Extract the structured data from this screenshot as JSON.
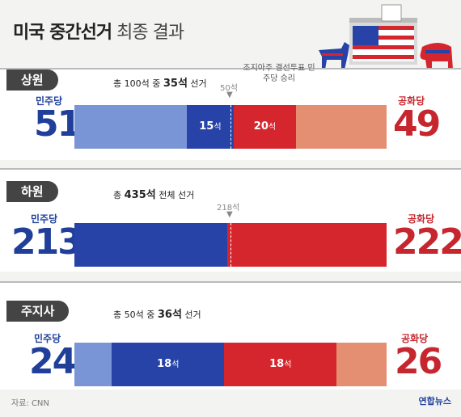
{
  "title_bold": "미국 중간선거",
  "title_light": "최종 결과",
  "labels": {
    "dem": "민주당",
    "rep": "공화당",
    "seat_unit": "석"
  },
  "footer": "자료: CNN",
  "logo": "연합뉴스",
  "colors": {
    "dem_dark": "#2743a8",
    "dem_light": "#7a95d6",
    "rep_dark": "#d6262d",
    "rep_light": "#e58f72"
  },
  "chart_data": [
    {
      "type": "bar",
      "title": "상원",
      "subtitle_pre": "총 100석 중 ",
      "subtitle_bold": "35석",
      "subtitle_post": " 선거",
      "total": 100,
      "dem": 51,
      "rep": 49,
      "dem_elected": 15,
      "rep_elected": 20,
      "majority_label": "50석",
      "note": "조지아주 결선투표 민주당 승리"
    },
    {
      "type": "bar",
      "title": "하원",
      "subtitle_pre": "총 ",
      "subtitle_bold": "435석",
      "subtitle_post": " 전체 선거",
      "total": 435,
      "dem": 213,
      "rep": 222,
      "majority_label": "218석"
    },
    {
      "type": "bar",
      "title": "주지사",
      "subtitle_pre": "총 50석 중 ",
      "subtitle_bold": "36석",
      "subtitle_post": " 선거",
      "total": 50,
      "dem": 24,
      "rep": 26,
      "dem_elected": 18,
      "rep_elected": 18
    }
  ]
}
